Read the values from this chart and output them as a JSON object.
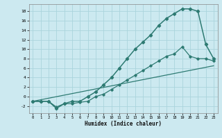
{
  "xlabel": "Humidex (Indice chaleur)",
  "background_color": "#cce9f0",
  "grid_color": "#aad4dc",
  "line_color": "#2d7a72",
  "xlim": [
    -0.5,
    23.5
  ],
  "ylim": [
    -3.5,
    19.5
  ],
  "xticks": [
    0,
    1,
    2,
    3,
    4,
    5,
    6,
    7,
    8,
    9,
    10,
    11,
    12,
    13,
    14,
    15,
    16,
    17,
    18,
    19,
    20,
    21,
    22,
    23
  ],
  "yticks": [
    -2,
    0,
    2,
    4,
    6,
    8,
    10,
    12,
    14,
    16,
    18
  ],
  "curve1_x": [
    0,
    1,
    2,
    3,
    4,
    5,
    6,
    7,
    8,
    9,
    10,
    11,
    12,
    13,
    14,
    15,
    16,
    17,
    18,
    19,
    20,
    21,
    22,
    23
  ],
  "curve1_y": [
    -1,
    -1,
    -1,
    -2.5,
    -1.5,
    -1,
    -1,
    0,
    1,
    2.5,
    4,
    6,
    8,
    10,
    11.5,
    13,
    15,
    16.5,
    17.5,
    18.5,
    18.5,
    18,
    11,
    8
  ],
  "curve2_x": [
    0,
    1,
    2,
    3,
    4,
    5,
    6,
    7,
    8,
    9,
    10,
    11,
    12,
    13,
    14,
    15,
    16,
    17,
    18,
    19,
    20,
    21,
    22,
    23
  ],
  "curve2_y": [
    -1,
    -1,
    -1,
    -2.2,
    -1.5,
    -1.5,
    -1.2,
    -1,
    0,
    0.5,
    1.5,
    2.5,
    3.5,
    4.5,
    5.5,
    6.5,
    7.5,
    8.5,
    9,
    10.5,
    8.5,
    8,
    8,
    7.5
  ],
  "curve3_x": [
    0,
    23
  ],
  "curve3_y": [
    -1,
    6.5
  ]
}
